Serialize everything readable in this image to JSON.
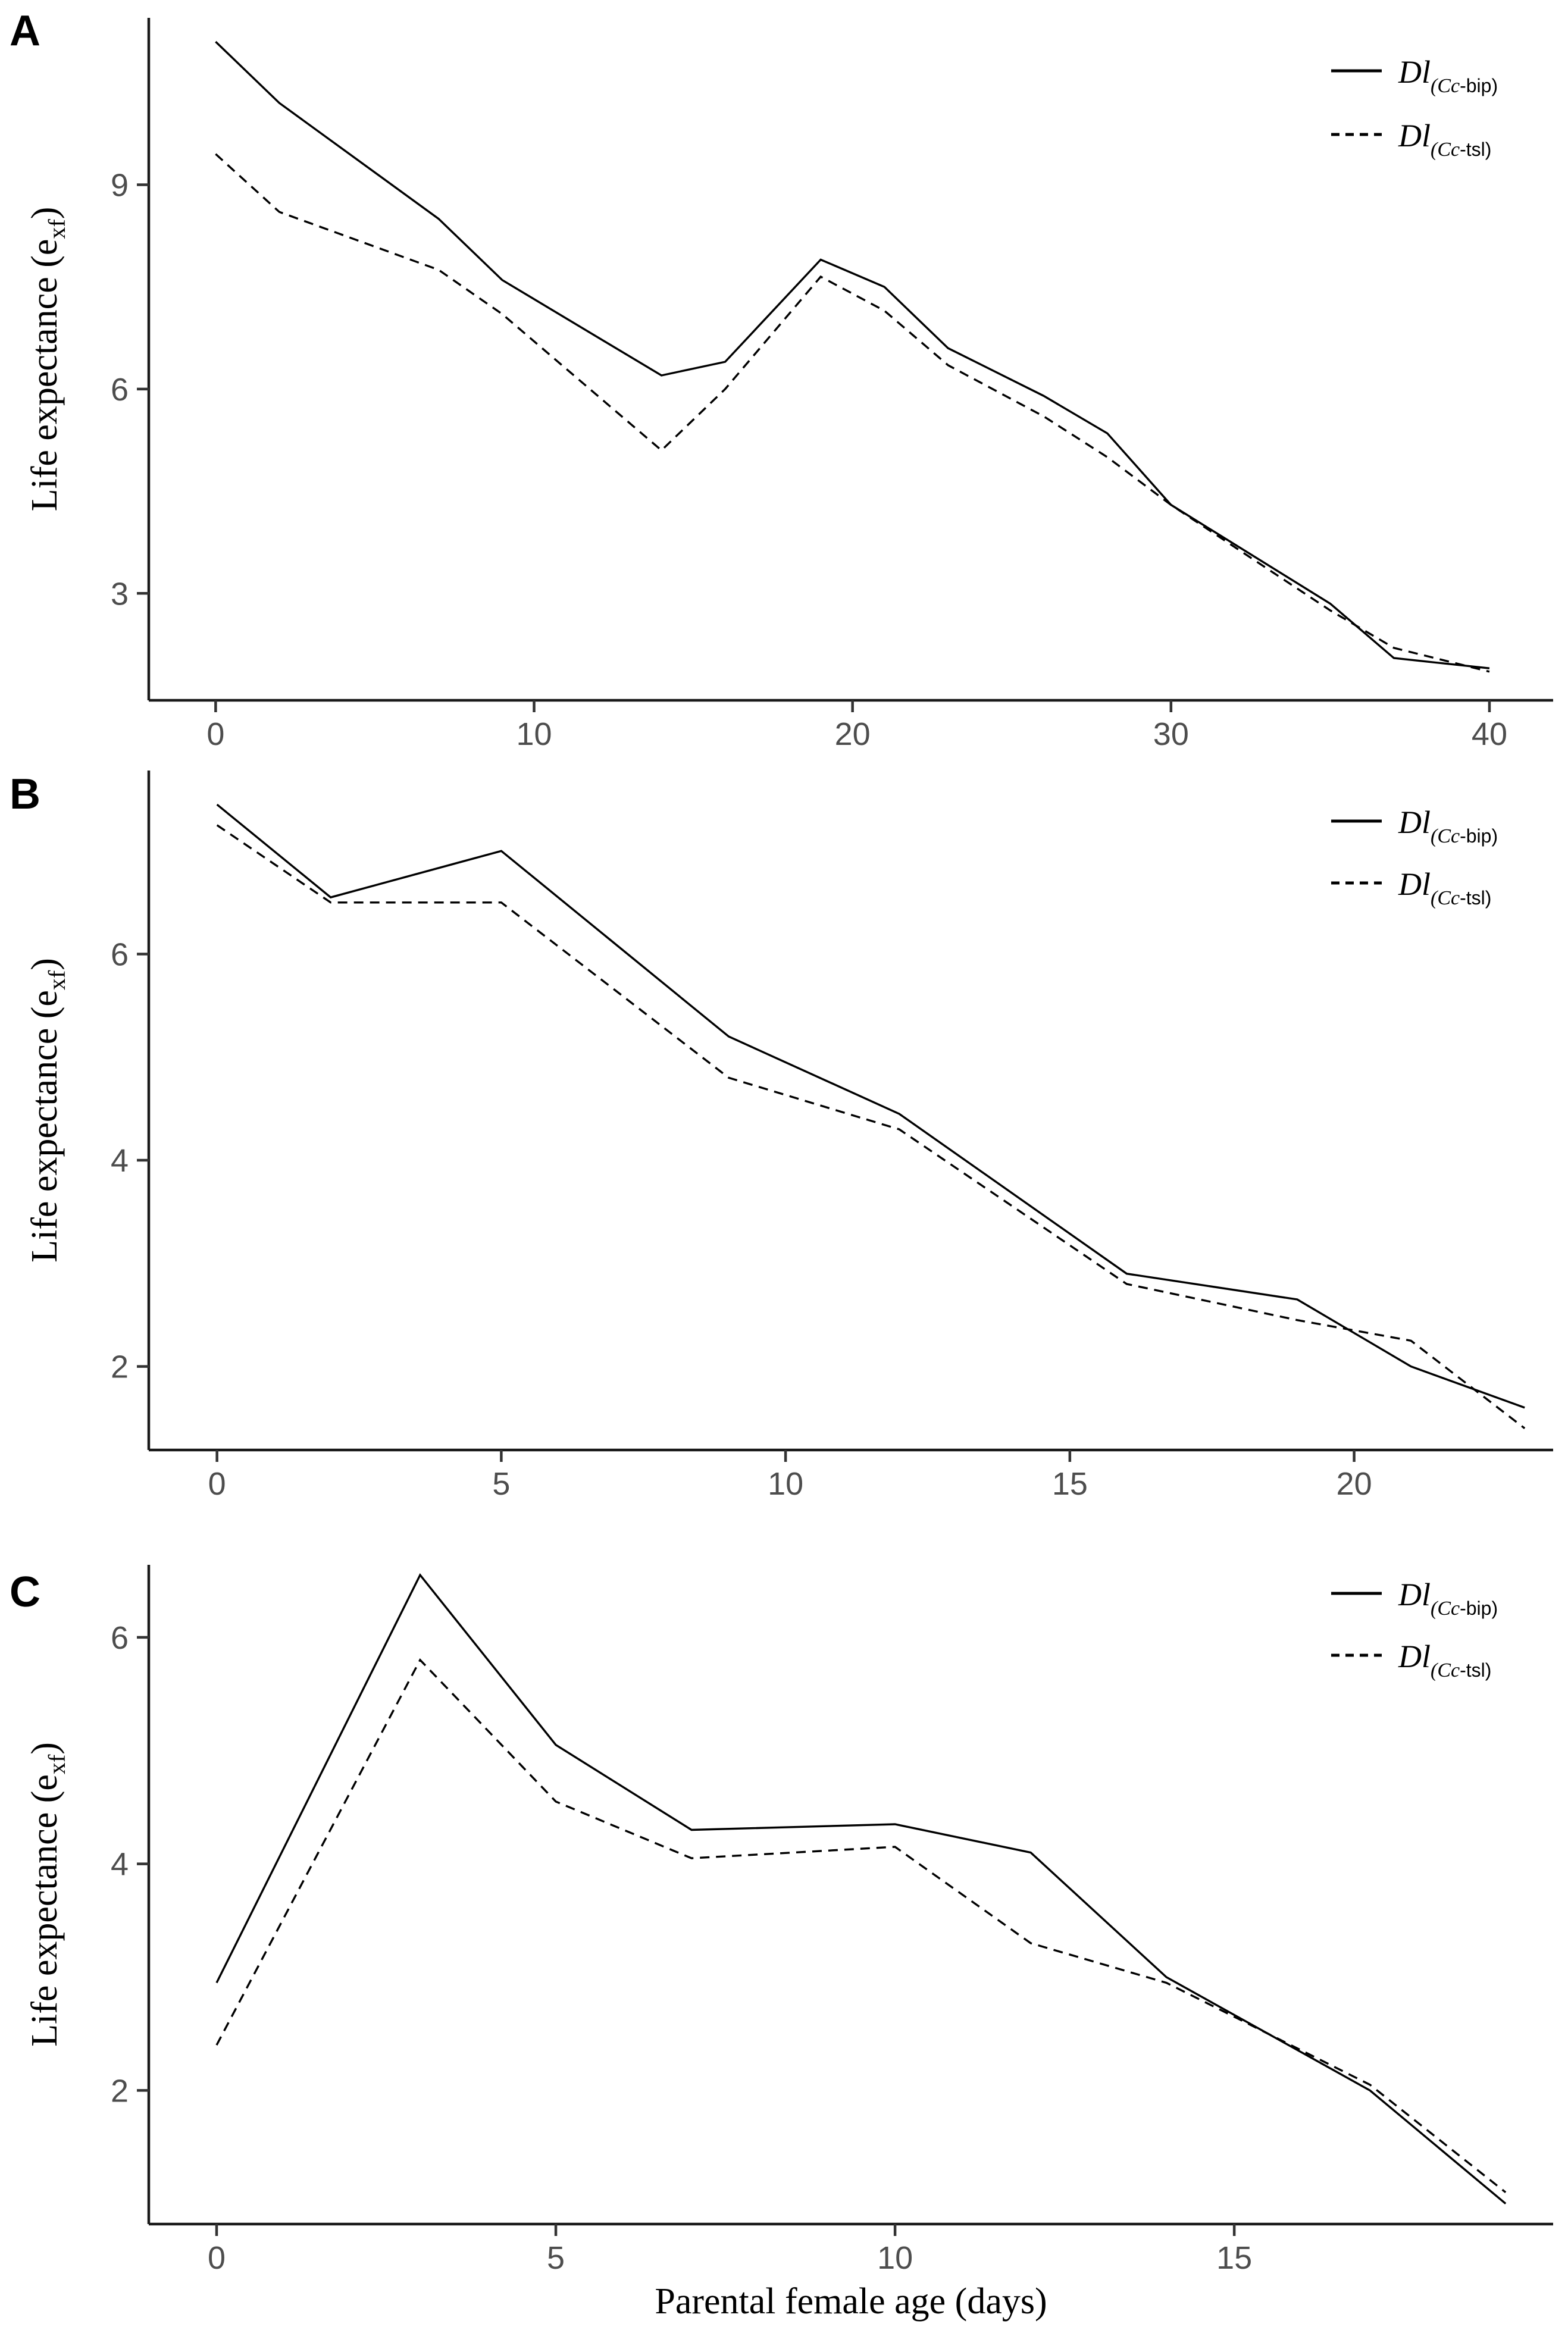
{
  "figure": {
    "kind": "three-panel line figure",
    "x_axis_title": "Parental female age (days)",
    "y_axis_title_pre": "Life expectance (e",
    "y_axis_title_sub": "xf",
    "y_axis_title_post": ")",
    "colors": {
      "axis": "#1a1a1a",
      "series_line": "#000000",
      "tick_label": "#4d4d4d",
      "text": "#000000"
    },
    "legend": {
      "position": "top-right inside each panel",
      "entries": [
        {
          "main": "Dl",
          "sub_open_italic": "(Cc",
          "sub_rest": "-bip)",
          "style": "solid"
        },
        {
          "main": "Dl",
          "sub_open_italic": "(Cc",
          "sub_rest": "-tsl)",
          "style": "dashed"
        }
      ]
    }
  },
  "chart_data": [
    {
      "type": "line",
      "panel_label": "A",
      "title": "",
      "xlabel": "",
      "ylabel": "Life expectance (e_xf)",
      "xlim": [
        -2.1,
        42.0
      ],
      "ylim": [
        1.43,
        11.45
      ],
      "x_ticks": [
        0,
        10,
        20,
        30,
        40
      ],
      "y_ticks": [
        3,
        6,
        9
      ],
      "grid": false,
      "x": [
        0,
        2,
        7,
        9,
        14,
        16,
        19,
        21,
        23,
        26,
        28,
        30,
        35,
        37,
        40
      ],
      "series": [
        {
          "name": "Dl(Cc-bip)",
          "style": "solid",
          "values": [
            11.1,
            10.2,
            8.5,
            7.6,
            6.2,
            6.4,
            7.9,
            7.5,
            6.6,
            5.9,
            5.35,
            4.3,
            2.85,
            2.05,
            1.9
          ]
        },
        {
          "name": "Dl(Cc-tsl)",
          "style": "dashed",
          "values": [
            9.45,
            8.6,
            7.75,
            7.1,
            5.1,
            6.0,
            7.65,
            7.15,
            6.35,
            5.6,
            5.0,
            4.3,
            2.75,
            2.2,
            1.85
          ]
        }
      ],
      "show_x_label": false
    },
    {
      "type": "line",
      "panel_label": "B",
      "title": "",
      "xlabel": "",
      "ylabel": "Life expectance (e_xf)",
      "xlim": [
        -1.2,
        23.5
      ],
      "ylim": [
        1.19,
        7.78
      ],
      "x_ticks": [
        0,
        5,
        10,
        15,
        20
      ],
      "y_ticks": [
        2,
        4,
        6
      ],
      "grid": false,
      "x": [
        0,
        2,
        5,
        9,
        12,
        16,
        19,
        21,
        23
      ],
      "series": [
        {
          "name": "Dl(Cc-bip)",
          "style": "solid",
          "values": [
            7.45,
            6.55,
            7.0,
            5.2,
            4.45,
            2.9,
            2.65,
            2.0,
            1.6
          ]
        },
        {
          "name": "Dl(Cc-tsl)",
          "style": "dashed",
          "values": [
            7.25,
            6.5,
            6.5,
            4.8,
            4.3,
            2.8,
            2.45,
            2.25,
            1.4
          ]
        }
      ],
      "show_x_label": false
    },
    {
      "type": "line",
      "panel_label": "C",
      "title": "",
      "xlabel": "Parental female age (days)",
      "ylabel": "Life expectance (e_xf)",
      "xlim": [
        -1.0,
        19.7
      ],
      "ylim": [
        0.82,
        6.64
      ],
      "x_ticks": [
        0,
        5,
        10,
        15
      ],
      "y_ticks": [
        2,
        4,
        6
      ],
      "grid": false,
      "x": [
        0,
        3,
        5,
        7,
        10,
        12,
        14,
        17,
        19
      ],
      "series": [
        {
          "name": "Dl(Cc-bip)",
          "style": "solid",
          "values": [
            2.95,
            6.55,
            5.05,
            4.3,
            4.35,
            4.1,
            3.0,
            2.0,
            1.0
          ]
        },
        {
          "name": "Dl(Cc-tsl)",
          "style": "dashed",
          "values": [
            2.4,
            5.8,
            4.55,
            4.05,
            4.15,
            3.3,
            2.95,
            2.05,
            1.1
          ]
        }
      ],
      "show_x_label": true
    }
  ]
}
